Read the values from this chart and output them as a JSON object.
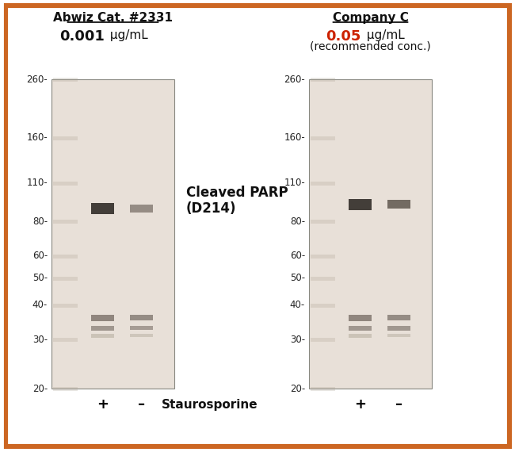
{
  "title_left_line1": "Abwiz Cat. #2331",
  "title_left_line2_bold": "0.001",
  "title_left_line2_rest": " μg/mL",
  "title_right_line1": "Company C",
  "title_right_line2_red": "0.05",
  "title_right_line2_rest": " μg/mL",
  "title_right_line3": "(recommended conc.)",
  "label_cleaved": "Cleaved PARP\n(D214)",
  "label_staurosporine": "Staurosporine",
  "plus_label": "+",
  "minus_label": "–",
  "mw_markers": [
    260,
    160,
    110,
    80,
    60,
    50,
    40,
    30,
    20
  ],
  "border_color": "#cc6622",
  "bg_color": "#ffffff",
  "gel_bg": "#e8e0d8",
  "band_color_dark": "#3a3530",
  "band_color_mid": "#7a7068",
  "band_color_light": "#b0a898"
}
